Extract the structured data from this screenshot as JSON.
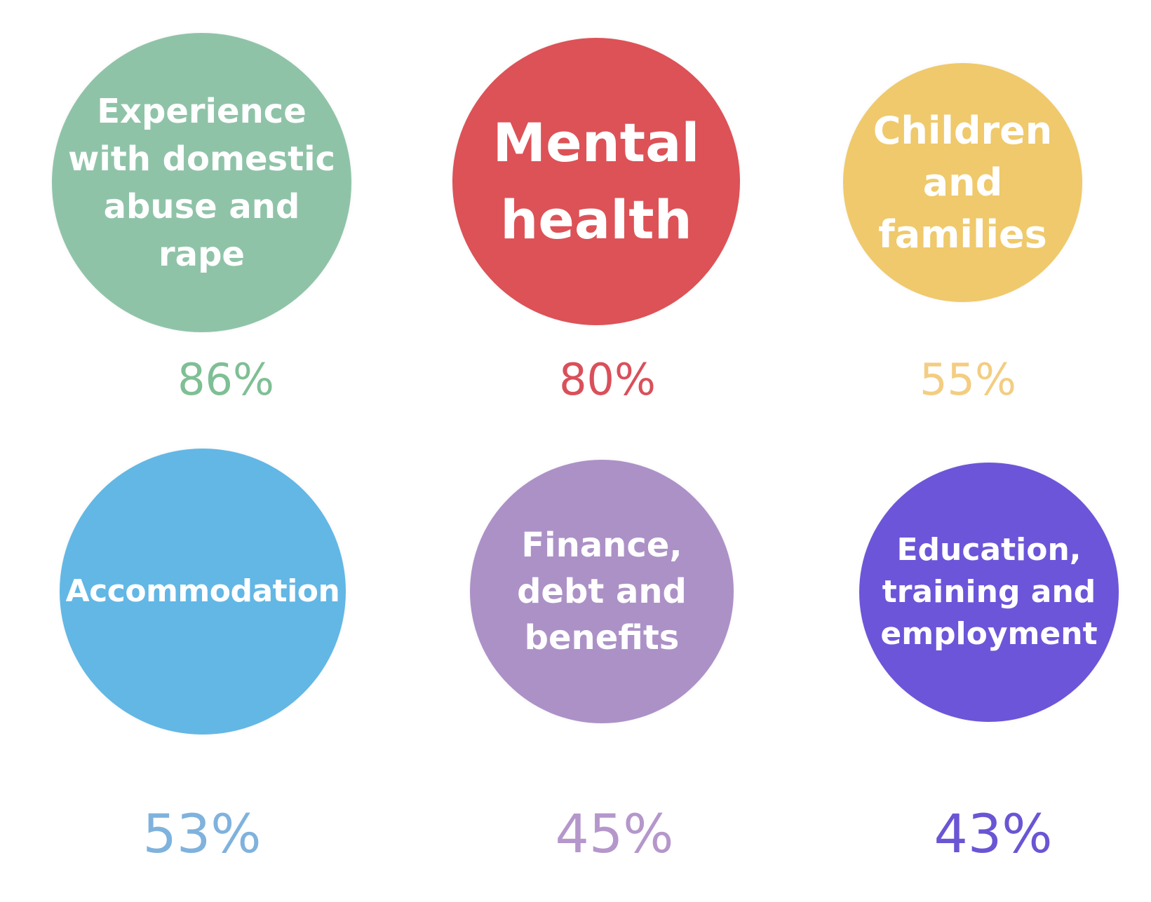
{
  "items": [
    {
      "label": "Experience\nwith domestic\nabuse and\nrape",
      "percent": "86%",
      "circle_color": "#8fc3a8",
      "percent_color": "#7fbf95"
    },
    {
      "label": "Mental\nhealth",
      "percent": "80%",
      "circle_color": "#dc5257",
      "percent_color": "#d9505a"
    },
    {
      "label": "Children\nand\nfamilies",
      "percent": "55%",
      "circle_color": "#efc96b",
      "percent_color": "#f3cd82"
    },
    {
      "label": "Accommodation",
      "percent": "53%",
      "circle_color": "#62b7e5",
      "percent_color": "#7fb2dd"
    },
    {
      "label": "Finance,\ndebt and\nbenefits",
      "percent": "45%",
      "circle_color": "#ac91c7",
      "percent_color": "#b597cb"
    },
    {
      "label": "Education,\ntraining and\nemployment",
      "percent": "43%",
      "circle_color": "#6d55d9",
      "percent_color": "#6a55d4"
    }
  ]
}
